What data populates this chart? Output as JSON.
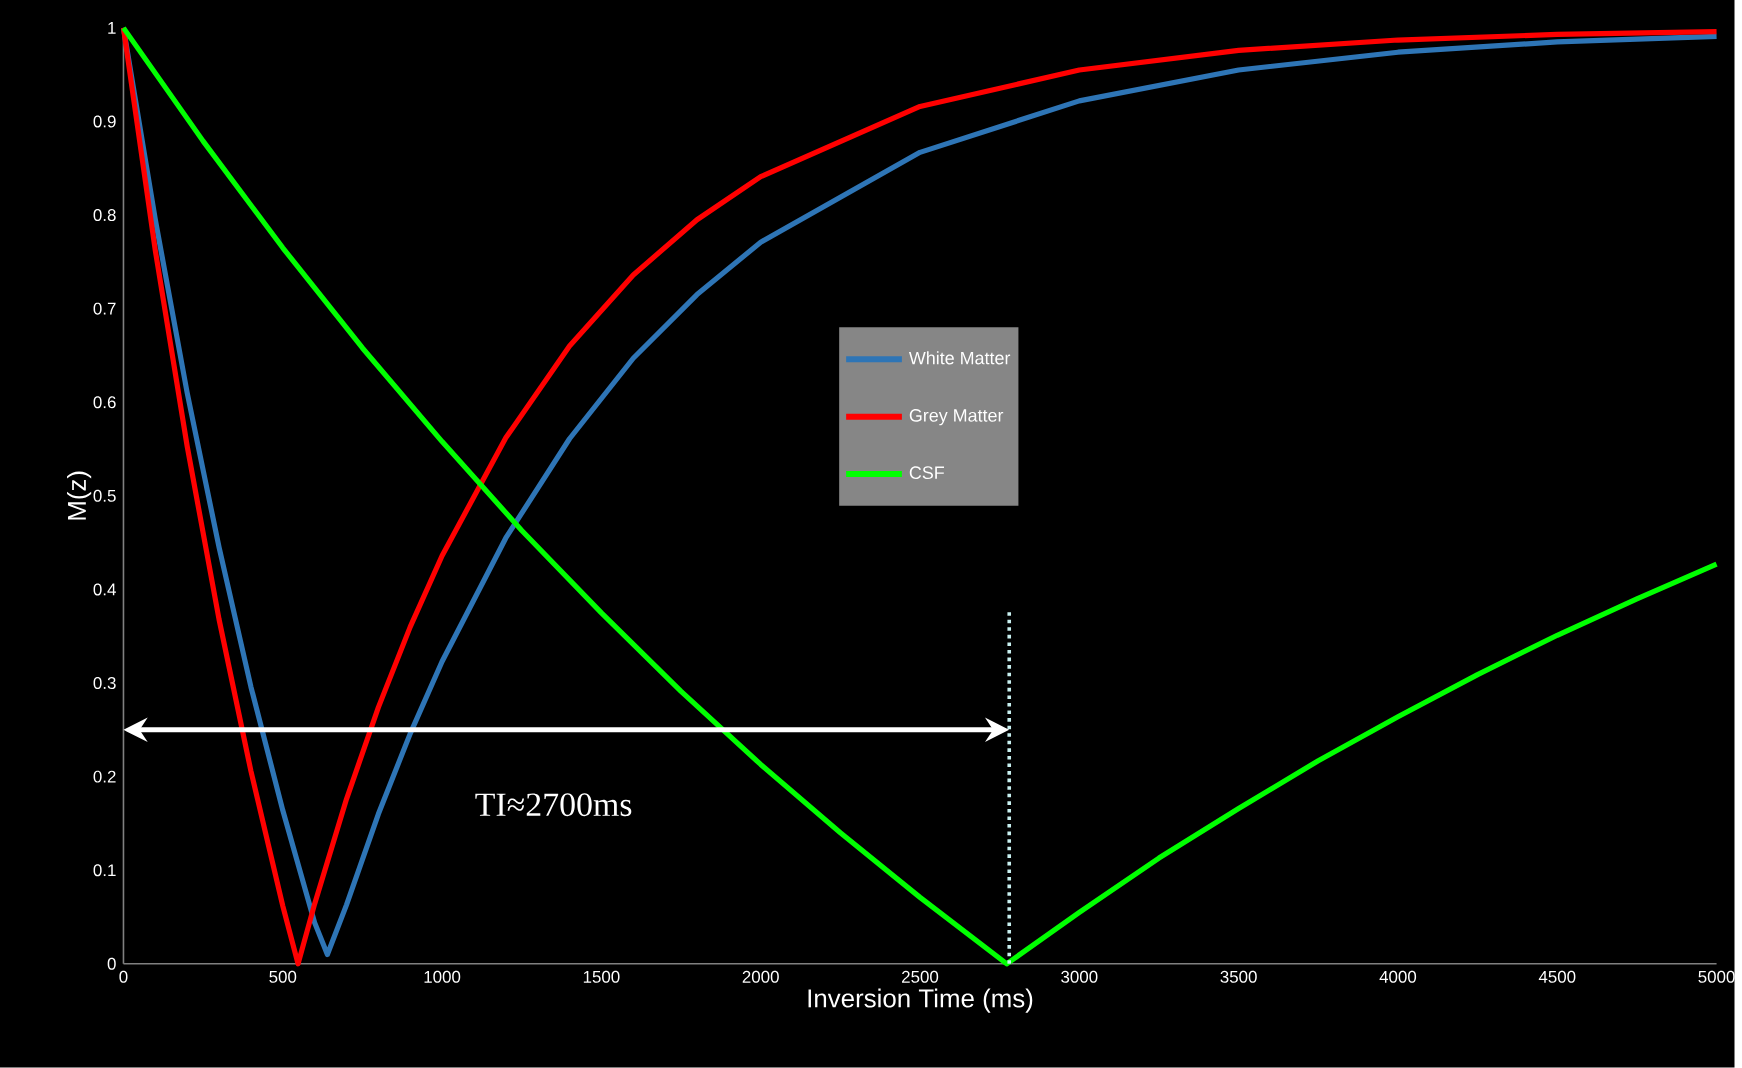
{
  "chart_data": {
    "type": "line",
    "xlabel": "Inversion Time (ms)",
    "ylabel": "M(z)",
    "xlim": [
      0,
      5000
    ],
    "ylim": [
      0,
      1
    ],
    "xticks": [
      0,
      500,
      1000,
      1500,
      2000,
      2500,
      3000,
      3500,
      4000,
      4500,
      5000
    ],
    "yticks": [
      0,
      0.1,
      0.2,
      0.3,
      0.4,
      0.5,
      0.6,
      0.7,
      0.8,
      0.9,
      1
    ],
    "marker": "none",
    "line_style": "solid",
    "legend": "center",
    "series": [
      {
        "name": "White Matter",
        "color": "#2e75b6",
        "x": [
          0,
          100,
          200,
          300,
          400,
          500,
          600,
          640,
          700,
          800,
          900,
          1000,
          1200,
          1400,
          1600,
          1800,
          2000,
          2500,
          3000,
          3500,
          4000,
          4500,
          5000
        ],
        "values": [
          1,
          0.795,
          0.61,
          0.445,
          0.296,
          0.164,
          0.044,
          0.01,
          0.063,
          0.16,
          0.246,
          0.323,
          0.455,
          0.561,
          0.647,
          0.715,
          0.771,
          0.867,
          0.922,
          0.955,
          0.974,
          0.985,
          0.991
        ]
      },
      {
        "name": "Grey Matter",
        "color": "#ff0000",
        "x": [
          0,
          100,
          200,
          300,
          400,
          500,
          548,
          600,
          700,
          800,
          900,
          1000,
          1200,
          1400,
          1600,
          1800,
          2000,
          2500,
          3000,
          3500,
          4000,
          4500,
          5000
        ],
        "values": [
          1,
          0.762,
          0.553,
          0.368,
          0.206,
          0.062,
          0,
          0.064,
          0.176,
          0.274,
          0.36,
          0.436,
          0.562,
          0.66,
          0.736,
          0.795,
          0.841,
          0.916,
          0.955,
          0.976,
          0.987,
          0.993,
          0.996
        ]
      },
      {
        "name": "CSF",
        "color": "#00ff00",
        "x": [
          0,
          250,
          500,
          750,
          1000,
          1250,
          1500,
          1750,
          2000,
          2250,
          2500,
          2772,
          3000,
          3250,
          3500,
          3750,
          4000,
          4250,
          4500,
          4750,
          5000
        ],
        "values": [
          1,
          0.879,
          0.765,
          0.658,
          0.558,
          0.463,
          0.375,
          0.291,
          0.213,
          0.14,
          0.071,
          0,
          0.055,
          0.113,
          0.166,
          0.217,
          0.264,
          0.309,
          0.351,
          0.39,
          0.427
        ]
      }
    ],
    "ref_lines": [
      {
        "axis": "x",
        "value": 2780,
        "color": "#c8f0f0",
        "line_style": "dotted"
      }
    ],
    "annotations": [
      "TI≈2700ms"
    ]
  }
}
